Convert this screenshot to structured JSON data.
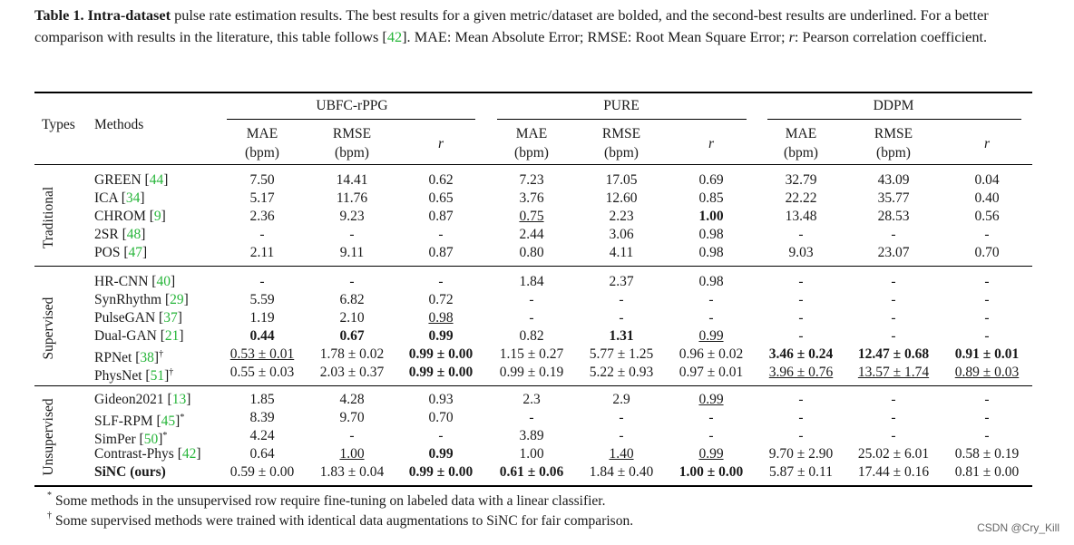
{
  "caption": {
    "label": "Table 1.",
    "bold": "Intra-dataset",
    "text1": " pulse rate estimation results. The best results for a given metric/dataset are bolded, and the second-best results are underlined. For a better comparison with results in the literature, this table follows [",
    "ref": "42",
    "text2": "]. MAE: Mean Absolute Error; RMSE: Root Mean Square Error; ",
    "r": "r",
    "text3": ": Pearson correlation coefficient."
  },
  "header": {
    "types": "Types",
    "methods": "Methods",
    "datasets": [
      "UBFC-rPPG",
      "PURE",
      "DDPM"
    ],
    "metrics": [
      {
        "top": "MAE",
        "bottom": "(bpm)"
      },
      {
        "top": "RMSE",
        "bottom": "(bpm)"
      },
      {
        "top": "r",
        "bottom": ""
      }
    ]
  },
  "sections": [
    {
      "label": "Traditional",
      "rows": [
        {
          "method": "GREEN",
          "ref": "44",
          "sup": "",
          "cells": [
            {
              "v": "7.50",
              "s": ""
            },
            {
              "v": "14.41",
              "s": ""
            },
            {
              "v": "0.62",
              "s": ""
            },
            {
              "v": "7.23",
              "s": ""
            },
            {
              "v": "17.05",
              "s": ""
            },
            {
              "v": "0.69",
              "s": ""
            },
            {
              "v": "32.79",
              "s": ""
            },
            {
              "v": "43.09",
              "s": ""
            },
            {
              "v": "0.04",
              "s": ""
            }
          ]
        },
        {
          "method": "ICA",
          "ref": "34",
          "sup": "",
          "cells": [
            {
              "v": "5.17",
              "s": ""
            },
            {
              "v": "11.76",
              "s": ""
            },
            {
              "v": "0.65",
              "s": ""
            },
            {
              "v": "3.76",
              "s": ""
            },
            {
              "v": "12.60",
              "s": ""
            },
            {
              "v": "0.85",
              "s": ""
            },
            {
              "v": "22.22",
              "s": ""
            },
            {
              "v": "35.77",
              "s": ""
            },
            {
              "v": "0.40",
              "s": ""
            }
          ]
        },
        {
          "method": "CHROM",
          "ref": "9",
          "sup": "",
          "cells": [
            {
              "v": "2.36",
              "s": ""
            },
            {
              "v": "9.23",
              "s": ""
            },
            {
              "v": "0.87",
              "s": ""
            },
            {
              "v": "0.75",
              "s": "u"
            },
            {
              "v": "2.23",
              "s": ""
            },
            {
              "v": "1.00",
              "s": "b"
            },
            {
              "v": "13.48",
              "s": ""
            },
            {
              "v": "28.53",
              "s": ""
            },
            {
              "v": "0.56",
              "s": ""
            }
          ]
        },
        {
          "method": "2SR",
          "ref": "48",
          "sup": "",
          "cells": [
            {
              "v": "-",
              "s": ""
            },
            {
              "v": "-",
              "s": ""
            },
            {
              "v": "-",
              "s": ""
            },
            {
              "v": "2.44",
              "s": ""
            },
            {
              "v": "3.06",
              "s": ""
            },
            {
              "v": "0.98",
              "s": ""
            },
            {
              "v": "-",
              "s": ""
            },
            {
              "v": "-",
              "s": ""
            },
            {
              "v": "-",
              "s": ""
            }
          ]
        },
        {
          "method": "POS",
          "ref": "47",
          "sup": "",
          "cells": [
            {
              "v": "2.11",
              "s": ""
            },
            {
              "v": "9.11",
              "s": ""
            },
            {
              "v": "0.87",
              "s": ""
            },
            {
              "v": "0.80",
              "s": ""
            },
            {
              "v": "4.11",
              "s": ""
            },
            {
              "v": "0.98",
              "s": ""
            },
            {
              "v": "9.03",
              "s": ""
            },
            {
              "v": "23.07",
              "s": ""
            },
            {
              "v": "0.70",
              "s": ""
            }
          ]
        }
      ]
    },
    {
      "label": "Supervised",
      "rows": [
        {
          "method": "HR-CNN",
          "ref": "40",
          "sup": "",
          "cells": [
            {
              "v": "-",
              "s": ""
            },
            {
              "v": "-",
              "s": ""
            },
            {
              "v": "-",
              "s": ""
            },
            {
              "v": "1.84",
              "s": ""
            },
            {
              "v": "2.37",
              "s": ""
            },
            {
              "v": "0.98",
              "s": ""
            },
            {
              "v": "-",
              "s": ""
            },
            {
              "v": "-",
              "s": ""
            },
            {
              "v": "-",
              "s": ""
            }
          ]
        },
        {
          "method": "SynRhythm",
          "ref": "29",
          "sup": "",
          "cells": [
            {
              "v": "5.59",
              "s": ""
            },
            {
              "v": "6.82",
              "s": ""
            },
            {
              "v": "0.72",
              "s": ""
            },
            {
              "v": "-",
              "s": ""
            },
            {
              "v": "-",
              "s": ""
            },
            {
              "v": "-",
              "s": ""
            },
            {
              "v": "-",
              "s": ""
            },
            {
              "v": "-",
              "s": ""
            },
            {
              "v": "-",
              "s": ""
            }
          ]
        },
        {
          "method": "PulseGAN",
          "ref": "37",
          "sup": "",
          "cells": [
            {
              "v": "1.19",
              "s": ""
            },
            {
              "v": "2.10",
              "s": ""
            },
            {
              "v": "0.98",
              "s": "u"
            },
            {
              "v": "-",
              "s": ""
            },
            {
              "v": "-",
              "s": ""
            },
            {
              "v": "-",
              "s": ""
            },
            {
              "v": "-",
              "s": ""
            },
            {
              "v": "-",
              "s": ""
            },
            {
              "v": "-",
              "s": ""
            }
          ]
        },
        {
          "method": "Dual-GAN",
          "ref": "21",
          "sup": "",
          "cells": [
            {
              "v": "0.44",
              "s": "b"
            },
            {
              "v": "0.67",
              "s": "b"
            },
            {
              "v": "0.99",
              "s": "b"
            },
            {
              "v": "0.82",
              "s": ""
            },
            {
              "v": "1.31",
              "s": "b"
            },
            {
              "v": "0.99",
              "s": "u"
            },
            {
              "v": "-",
              "s": ""
            },
            {
              "v": "-",
              "s": ""
            },
            {
              "v": "-",
              "s": ""
            }
          ]
        },
        {
          "method": "RPNet",
          "ref": "38",
          "sup": "†",
          "cells": [
            {
              "v": "0.53 ± 0.01",
              "s": "u"
            },
            {
              "v": "1.78 ± 0.02",
              "s": ""
            },
            {
              "v": "0.99 ± 0.00",
              "s": "b"
            },
            {
              "v": "1.15 ± 0.27",
              "s": ""
            },
            {
              "v": "5.77 ± 1.25",
              "s": ""
            },
            {
              "v": "0.96 ± 0.02",
              "s": ""
            },
            {
              "v": "3.46 ± 0.24",
              "s": "b"
            },
            {
              "v": "12.47 ± 0.68",
              "s": "b"
            },
            {
              "v": "0.91 ± 0.01",
              "s": "b"
            }
          ]
        },
        {
          "method": "PhysNet",
          "ref": "51",
          "sup": "†",
          "cells": [
            {
              "v": "0.55 ± 0.03",
              "s": ""
            },
            {
              "v": "2.03 ± 0.37",
              "s": ""
            },
            {
              "v": "0.99 ± 0.00",
              "s": "b"
            },
            {
              "v": "0.99 ± 0.19",
              "s": ""
            },
            {
              "v": "5.22 ± 0.93",
              "s": ""
            },
            {
              "v": "0.97 ± 0.01",
              "s": ""
            },
            {
              "v": "3.96 ± 0.76",
              "s": "u"
            },
            {
              "v": "13.57 ± 1.74",
              "s": "u"
            },
            {
              "v": "0.89 ± 0.03",
              "s": "u"
            }
          ]
        }
      ]
    },
    {
      "label": "Unsupervised",
      "rows": [
        {
          "method": "Gideon2021",
          "ref": "13",
          "sup": "",
          "cells": [
            {
              "v": "1.85",
              "s": ""
            },
            {
              "v": "4.28",
              "s": ""
            },
            {
              "v": "0.93",
              "s": ""
            },
            {
              "v": "2.3",
              "s": ""
            },
            {
              "v": "2.9",
              "s": ""
            },
            {
              "v": "0.99",
              "s": "u"
            },
            {
              "v": "-",
              "s": ""
            },
            {
              "v": "-",
              "s": ""
            },
            {
              "v": "-",
              "s": ""
            }
          ]
        },
        {
          "method": "SLF-RPM",
          "ref": "45",
          "sup": "*",
          "cells": [
            {
              "v": "8.39",
              "s": ""
            },
            {
              "v": "9.70",
              "s": ""
            },
            {
              "v": "0.70",
              "s": ""
            },
            {
              "v": "-",
              "s": ""
            },
            {
              "v": "-",
              "s": ""
            },
            {
              "v": "-",
              "s": ""
            },
            {
              "v": "-",
              "s": ""
            },
            {
              "v": "-",
              "s": ""
            },
            {
              "v": "-",
              "s": ""
            }
          ]
        },
        {
          "method": "SimPer",
          "ref": "50",
          "sup": "*",
          "cells": [
            {
              "v": "4.24",
              "s": ""
            },
            {
              "v": "-",
              "s": ""
            },
            {
              "v": "-",
              "s": ""
            },
            {
              "v": "3.89",
              "s": ""
            },
            {
              "v": "-",
              "s": ""
            },
            {
              "v": "-",
              "s": ""
            },
            {
              "v": "-",
              "s": ""
            },
            {
              "v": "-",
              "s": ""
            },
            {
              "v": "-",
              "s": ""
            }
          ]
        },
        {
          "method": "Contrast-Phys",
          "ref": "42",
          "sup": "",
          "cells": [
            {
              "v": "0.64",
              "s": ""
            },
            {
              "v": "1.00",
              "s": "u"
            },
            {
              "v": "0.99",
              "s": "b"
            },
            {
              "v": "1.00",
              "s": ""
            },
            {
              "v": "1.40",
              "s": "u"
            },
            {
              "v": "0.99",
              "s": "u"
            },
            {
              "v": "9.70 ± 2.90",
              "s": ""
            },
            {
              "v": "25.02 ± 6.01",
              "s": ""
            },
            {
              "v": "0.58 ± 0.19",
              "s": ""
            }
          ]
        },
        {
          "method": "SiNC (ours)",
          "ref": "",
          "sup": "",
          "bold": true,
          "cells": [
            {
              "v": "0.59 ± 0.00",
              "s": ""
            },
            {
              "v": "1.83 ± 0.04",
              "s": ""
            },
            {
              "v": "0.99 ± 0.00",
              "s": "b"
            },
            {
              "v": "0.61 ± 0.06",
              "s": "b"
            },
            {
              "v": "1.84 ± 0.40",
              "s": ""
            },
            {
              "v": "1.00 ± 0.00",
              "s": "b"
            },
            {
              "v": "5.87 ± 0.11",
              "s": ""
            },
            {
              "v": "17.44 ± 0.16",
              "s": ""
            },
            {
              "v": "0.81 ± 0.00",
              "s": ""
            }
          ]
        }
      ]
    }
  ],
  "footnotes": [
    {
      "mark": "*",
      "text": "Some methods in the unsupervised row require fine-tuning on labeled data with a linear classifier."
    },
    {
      "mark": "†",
      "text": "Some supervised methods were trained with identical data augmentations to SiNC for fair comparison."
    }
  ],
  "watermark": "CSDN @Cry_Kill",
  "colors": {
    "reference_link": "#27b53a"
  }
}
